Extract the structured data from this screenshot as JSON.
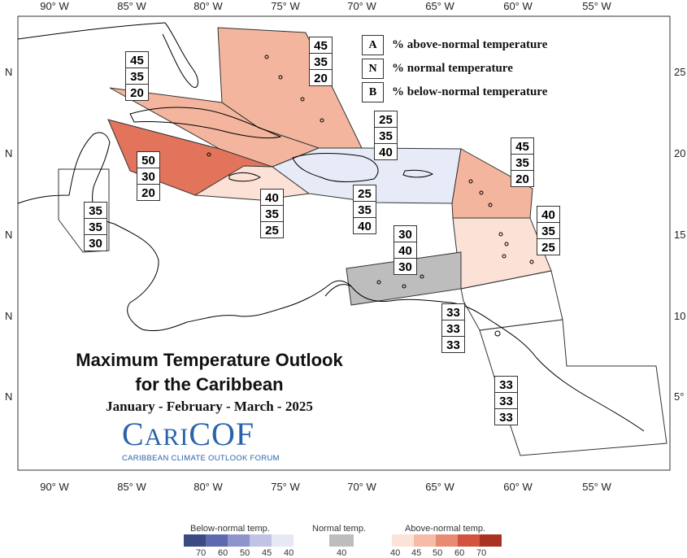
{
  "map": {
    "lon_ticks": [
      "90° W",
      "85° W",
      "80° W",
      "75° W",
      "70° W",
      "65° W",
      "60° W",
      "55° W"
    ],
    "lat_labels_left": [
      "N",
      "N",
      "N",
      "N",
      "N"
    ],
    "lat_labels_right": [
      "25",
      "20",
      "15",
      "10",
      "5°"
    ]
  },
  "legend": {
    "rows": [
      {
        "key": "A",
        "text": "% above-normal temperature"
      },
      {
        "key": "N",
        "text": "% normal temperature"
      },
      {
        "key": "B",
        "text": "% below-normal temperature"
      }
    ]
  },
  "regions": [
    {
      "name": "bahamas",
      "values": [
        "45",
        "35",
        "20"
      ],
      "fill": "#f4b59e"
    },
    {
      "name": "cuba",
      "values": [
        "45",
        "35",
        "20"
      ],
      "fill": "#f4b59e"
    },
    {
      "name": "cayman",
      "values": [
        "50",
        "30",
        "20"
      ],
      "fill": "#e2745c"
    },
    {
      "name": "jamaica",
      "values": [
        "40",
        "35",
        "25"
      ],
      "fill": "#fbe1d6"
    },
    {
      "name": "hispaniola-upper",
      "values": [
        "25",
        "35",
        "40"
      ],
      "fill": "#e6ebf7"
    },
    {
      "name": "hispaniola-lower",
      "values": [
        "25",
        "35",
        "40"
      ],
      "fill": "#e6ebf7"
    },
    {
      "name": "leeward-islands",
      "values": [
        "45",
        "35",
        "20"
      ],
      "fill": "#f4b59e"
    },
    {
      "name": "windward-islands",
      "values": [
        "40",
        "35",
        "25"
      ],
      "fill": "#fbe1d6"
    },
    {
      "name": "belize",
      "values": [
        "35",
        "35",
        "30"
      ],
      "fill": "none"
    },
    {
      "name": "abc-islands",
      "values": [
        "30",
        "40",
        "30"
      ],
      "fill": "#bdbdbd"
    },
    {
      "name": "trinidad",
      "values": [
        "33",
        "33",
        "33"
      ],
      "fill": "none"
    },
    {
      "name": "guianas",
      "values": [
        "33",
        "33",
        "33"
      ],
      "fill": "none"
    }
  ],
  "title": {
    "line1": "Maximum Temperature Outlook",
    "line2": "for the Caribbean",
    "line3": "January - February - March - 2025"
  },
  "logo": {
    "word_cap1": "C",
    "word_small": "ARI",
    "word_cap2": "COF",
    "subtitle": "CARIBBEAN CLIMATE OUTLOOK FORUM"
  },
  "color_scale": {
    "below_label": "Below-normal temp.",
    "normal_label": "Normal temp.",
    "above_label": "Above-normal temp.",
    "below_colors": [
      "#3a4a82",
      "#5d6ab0",
      "#8f95cc",
      "#c0c3e4",
      "#e6e8f6"
    ],
    "below_ticks": [
      "70",
      "60",
      "50",
      "45",
      "40"
    ],
    "normal_color": "#bdbdbd",
    "normal_tick": "40",
    "above_colors": [
      "#fbe3d8",
      "#f7bca8",
      "#e98a72",
      "#d3533f",
      "#a93223"
    ],
    "above_ticks": [
      "40",
      "45",
      "50",
      "60",
      "70"
    ]
  }
}
